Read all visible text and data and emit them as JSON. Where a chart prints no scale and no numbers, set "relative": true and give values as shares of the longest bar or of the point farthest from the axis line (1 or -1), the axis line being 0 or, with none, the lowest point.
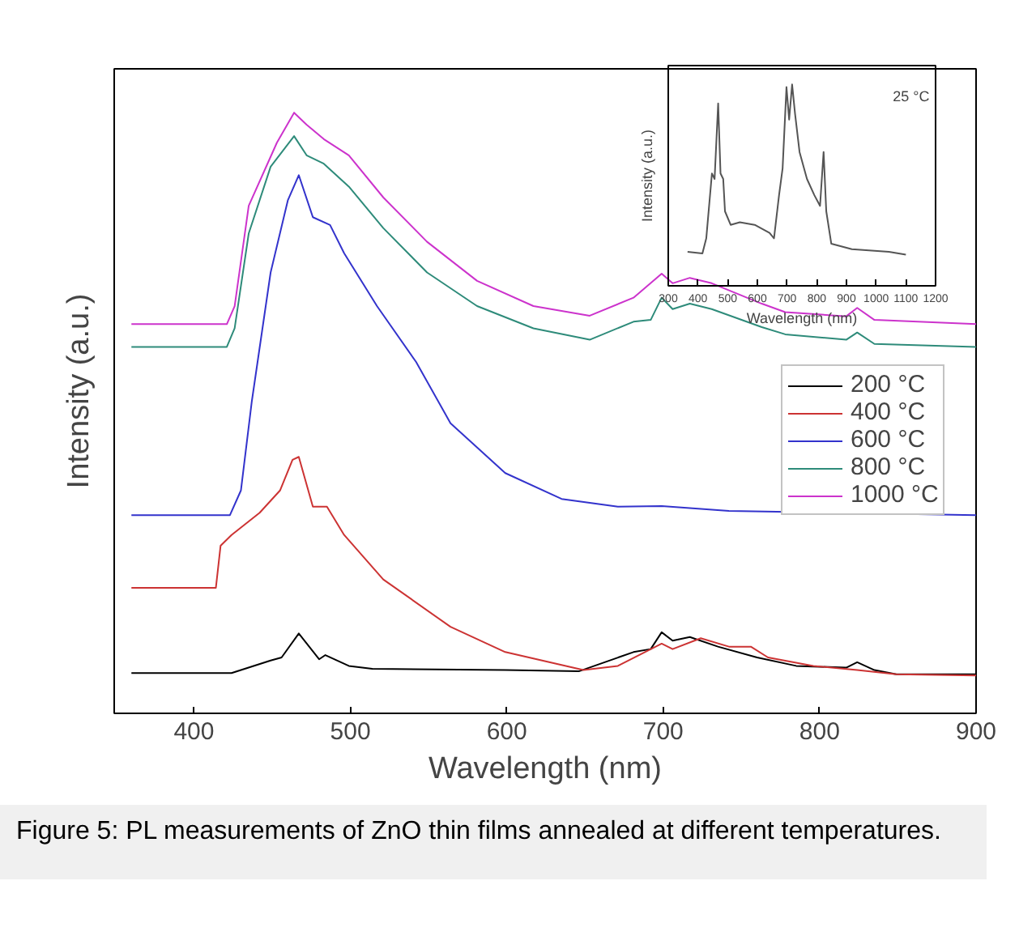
{
  "chart_data": [
    {
      "type": "line",
      "relative": true,
      "xlabel": "Wavelength (nm)",
      "ylabel": "Intensity (a.u.)",
      "xlim": [
        349,
        900
      ],
      "xticks": [
        400,
        500,
        600,
        700,
        800,
        900
      ],
      "legend": "right",
      "annotations": [
        "Figure 5: PL measurements of ZnO thin films annealed at different temperatures."
      ],
      "series": [
        {
          "name": "200 °C",
          "color": "#000000",
          "x": [
            360,
            424,
            449,
            456,
            467,
            480,
            484,
            499,
            514,
            599,
            646,
            681,
            692,
            699,
            706,
            717,
            735,
            760,
            785,
            817,
            824,
            835,
            849,
            900
          ],
          "values": [
            0.067,
            0.067,
            0.088,
            0.093,
            0.133,
            0.09,
            0.097,
            0.079,
            0.074,
            0.072,
            0.07,
            0.102,
            0.107,
            0.135,
            0.121,
            0.127,
            0.111,
            0.093,
            0.079,
            0.076,
            0.085,
            0.072,
            0.065,
            0.065
          ]
        },
        {
          "name": "400 °C",
          "color": "#cc3333",
          "x": [
            360,
            414,
            417,
            424,
            442,
            455,
            463,
            467,
            476,
            485,
            496,
            521,
            564,
            599,
            649,
            671,
            699,
            706,
            724,
            742,
            756,
            767,
            796,
            824,
            849,
            900
          ],
          "values": [
            0.209,
            0.209,
            0.279,
            0.297,
            0.334,
            0.371,
            0.422,
            0.427,
            0.344,
            0.344,
            0.297,
            0.223,
            0.144,
            0.102,
            0.072,
            0.079,
            0.116,
            0.107,
            0.125,
            0.111,
            0.111,
            0.093,
            0.079,
            0.072,
            0.065,
            0.063
          ]
        },
        {
          "name": "600 °C",
          "color": "#3333cc",
          "x": [
            360,
            423,
            430,
            437,
            449,
            460,
            467,
            476,
            487,
            496,
            517,
            542,
            564,
            599,
            635,
            671,
            699,
            742,
            900
          ],
          "values": [
            0.33,
            0.33,
            0.371,
            0.52,
            0.734,
            0.854,
            0.896,
            0.826,
            0.813,
            0.766,
            0.678,
            0.585,
            0.483,
            0.4,
            0.357,
            0.344,
            0.345,
            0.337,
            0.33
          ]
        },
        {
          "name": "800 °C",
          "color": "#2e8b7a",
          "x": [
            360,
            421,
            426,
            435,
            449,
            464,
            472,
            483,
            499,
            521,
            549,
            581,
            617,
            653,
            681,
            692,
            699,
            706,
            717,
            731,
            763,
            778,
            817,
            824,
            835,
            900
          ],
          "values": [
            0.61,
            0.61,
            0.641,
            0.799,
            0.91,
            0.961,
            0.929,
            0.915,
            0.877,
            0.808,
            0.734,
            0.678,
            0.641,
            0.622,
            0.652,
            0.655,
            0.692,
            0.673,
            0.682,
            0.673,
            0.643,
            0.631,
            0.622,
            0.634,
            0.615,
            0.61
          ]
        },
        {
          "name": "1000 °C",
          "color": "#cc33cc",
          "x": [
            360,
            421,
            426,
            435,
            453,
            464,
            472,
            483,
            499,
            521,
            549,
            581,
            617,
            653,
            681,
            699,
            706,
            717,
            731,
            763,
            778,
            817,
            824,
            835,
            900
          ],
          "values": [
            0.648,
            0.648,
            0.678,
            0.845,
            0.95,
            1.0,
            0.98,
            0.956,
            0.929,
            0.859,
            0.785,
            0.72,
            0.678,
            0.662,
            0.692,
            0.732,
            0.716,
            0.725,
            0.716,
            0.682,
            0.668,
            0.661,
            0.675,
            0.655,
            0.648
          ]
        }
      ]
    },
    {
      "type": "line",
      "relative": true,
      "xlabel": "Wavelength (nm)",
      "ylabel": "Intensity (a.u.)",
      "xlim": [
        300,
        1200
      ],
      "xticks": [
        300,
        400,
        500,
        600,
        700,
        800,
        900,
        1000,
        1100,
        1200
      ],
      "annotations": [
        "25 °C"
      ],
      "series": [
        {
          "color": "#555555",
          "x": [
            365,
            415,
            428,
            447,
            456,
            468,
            476,
            485,
            491,
            510,
            541,
            591,
            641,
            656,
            673,
            685,
            698,
            707,
            717,
            727,
            742,
            767,
            792,
            811,
            823,
            832,
            849,
            918,
            1043,
            1100
          ],
          "values": [
            0.169,
            0.161,
            0.236,
            0.558,
            0.531,
            0.906,
            0.558,
            0.531,
            0.37,
            0.303,
            0.316,
            0.303,
            0.263,
            0.236,
            0.45,
            0.584,
            0.987,
            0.826,
            1.0,
            0.853,
            0.665,
            0.531,
            0.45,
            0.397,
            0.665,
            0.37,
            0.209,
            0.182,
            0.169,
            0.155
          ]
        }
      ]
    }
  ]
}
